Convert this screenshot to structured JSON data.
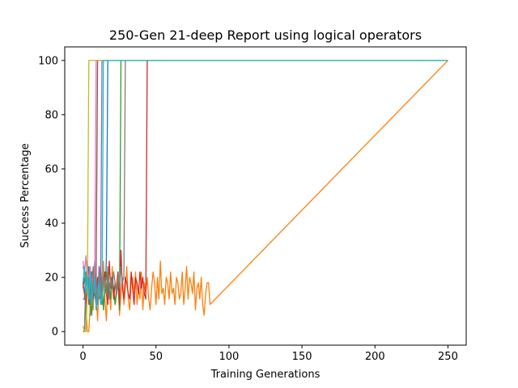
{
  "chart_data": {
    "type": "line",
    "title": "250-Gen 21-deep Report using logical operators",
    "xlabel": "Training Generations",
    "ylabel": "Success Percentage",
    "xlim": [
      -12.5,
      262.5
    ],
    "ylim": [
      -5,
      105
    ],
    "xticks": [
      0,
      50,
      100,
      150,
      200,
      250
    ],
    "yticks": [
      0,
      20,
      40,
      60,
      80,
      100
    ],
    "grid": false,
    "legend": "none",
    "colors": [
      "#1f77b4",
      "#ff7f0e",
      "#2ca02c",
      "#d62728",
      "#9467bd",
      "#8c564b",
      "#e377c2",
      "#7f7f7f",
      "#bcbd22",
      "#17becf"
    ],
    "series": [
      {
        "color": "#1f77b4",
        "x": [
          0,
          1,
          2,
          3,
          4,
          5,
          6,
          7,
          8,
          9,
          10,
          11,
          12,
          13,
          14,
          15,
          16,
          17,
          18,
          19,
          250
        ],
        "y": [
          12,
          12,
          22,
          18,
          24,
          6,
          18,
          14,
          26,
          8,
          20,
          12,
          18,
          10,
          22,
          14,
          26,
          100,
          100,
          100,
          100
        ]
      },
      {
        "color": "#ff7f0e",
        "x": [
          0,
          1,
          2,
          3,
          4,
          5,
          6,
          7,
          8,
          9,
          10,
          11,
          12,
          13,
          14,
          15,
          16,
          17,
          18,
          19,
          20,
          21,
          22,
          23,
          24,
          25,
          26,
          27,
          28,
          29,
          30,
          31,
          32,
          33,
          34,
          35,
          36,
          37,
          38,
          39,
          40,
          41,
          42,
          43,
          44,
          45,
          46,
          47,
          48,
          49,
          50,
          51,
          52,
          53,
          54,
          55,
          56,
          57,
          58,
          59,
          60,
          61,
          62,
          63,
          64,
          65,
          66,
          67,
          68,
          69,
          70,
          71,
          72,
          73,
          74,
          75,
          76,
          77,
          78,
          79,
          80,
          81,
          82,
          83,
          84,
          85,
          86,
          87,
          250
        ],
        "y": [
          0,
          0,
          10,
          0,
          0,
          10,
          20,
          8,
          24,
          14,
          4,
          18,
          22,
          10,
          26,
          12,
          4,
          20,
          16,
          8,
          24,
          14,
          10,
          18,
          22,
          6,
          14,
          20,
          10,
          16,
          24,
          12,
          8,
          18,
          20,
          14,
          22,
          10,
          16,
          12,
          22,
          8,
          18,
          14,
          20,
          12,
          8,
          16,
          22,
          18,
          10,
          20,
          12,
          26,
          14,
          16,
          10,
          20,
          18,
          12,
          22,
          14,
          16,
          10,
          20,
          18,
          12,
          14,
          22,
          10,
          16,
          24,
          12,
          20,
          18,
          14,
          22,
          8,
          16,
          18,
          12,
          20,
          10,
          6,
          14,
          18,
          18,
          10,
          100
        ]
      },
      {
        "color": "#2ca02c",
        "x": [
          0,
          1,
          2,
          3,
          4,
          5,
          6,
          7,
          8,
          9,
          10,
          11,
          12,
          13,
          14,
          15,
          16,
          17,
          18,
          19,
          20,
          21,
          22,
          23,
          24,
          25,
          26,
          27,
          250
        ],
        "y": [
          0,
          0,
          14,
          20,
          16,
          12,
          6,
          18,
          22,
          10,
          14,
          18,
          12,
          20,
          8,
          16,
          22,
          14,
          18,
          12,
          20,
          16,
          10,
          14,
          18,
          8,
          100,
          100,
          100
        ]
      },
      {
        "color": "#d62728",
        "x": [
          0,
          1,
          2,
          3,
          4,
          5,
          6,
          7,
          8,
          9,
          10,
          11,
          12,
          13,
          14,
          15,
          16,
          17,
          18,
          19,
          20,
          21,
          22,
          23,
          24,
          25,
          26,
          27,
          28,
          29,
          30,
          31,
          32,
          33,
          34,
          35,
          36,
          37,
          38,
          39,
          40,
          41,
          42,
          43,
          44,
          45,
          250
        ],
        "y": [
          18,
          14,
          10,
          20,
          16,
          12,
          22,
          18,
          14,
          10,
          20,
          16,
          24,
          12,
          18,
          22,
          14,
          10,
          26,
          16,
          20,
          12,
          18,
          14,
          22,
          10,
          30,
          16,
          12,
          20,
          18,
          14,
          12,
          22,
          16,
          10,
          20,
          18,
          14,
          22,
          16,
          20,
          14,
          12,
          100,
          100,
          100
        ]
      },
      {
        "color": "#9467bd",
        "x": [
          0,
          1,
          2,
          3,
          4,
          5,
          6,
          7,
          8,
          9,
          10,
          11,
          12,
          13,
          14,
          15,
          16,
          250
        ],
        "y": [
          24,
          22,
          18,
          26,
          14,
          20,
          12,
          22,
          16,
          18,
          10,
          24,
          14,
          100,
          100,
          100,
          100,
          100
        ]
      },
      {
        "color": "#8c564b",
        "x": [
          0,
          1,
          2,
          3,
          4,
          5,
          6,
          7,
          8,
          9,
          10,
          11,
          12,
          250
        ],
        "y": [
          16,
          20,
          14,
          24,
          10,
          18,
          22,
          12,
          16,
          20,
          100,
          100,
          100,
          100
        ]
      },
      {
        "color": "#e377c2",
        "x": [
          0,
          1,
          2,
          3,
          4,
          5,
          6,
          7,
          8,
          9,
          10,
          11,
          250
        ],
        "y": [
          26,
          22,
          28,
          18,
          20,
          24,
          16,
          22,
          18,
          100,
          100,
          100,
          100
        ]
      },
      {
        "color": "#7f7f7f",
        "x": [
          0,
          1,
          2,
          3,
          4,
          5,
          6,
          7,
          8,
          9,
          10,
          11,
          12,
          13,
          14,
          15,
          16,
          17,
          18,
          19,
          20,
          21,
          22,
          23,
          24,
          25,
          26,
          27,
          28,
          29,
          250
        ],
        "y": [
          0,
          0,
          22,
          16,
          20,
          10,
          18,
          24,
          14,
          20,
          12,
          22,
          16,
          10,
          18,
          20,
          14,
          24,
          12,
          20,
          16,
          22,
          18,
          14,
          20,
          16,
          24,
          18,
          20,
          100,
          100
        ]
      },
      {
        "color": "#bcbd22",
        "x": [
          0,
          1,
          2,
          3,
          4,
          5,
          6,
          7,
          250
        ],
        "y": [
          2,
          0,
          0,
          14,
          100,
          100,
          100,
          100,
          100
        ]
      },
      {
        "color": "#17becf",
        "x": [
          0,
          1,
          2,
          3,
          4,
          5,
          6,
          7,
          8,
          9,
          10,
          11,
          12,
          13,
          14,
          15,
          16,
          17,
          250
        ],
        "y": [
          18,
          24,
          14,
          20,
          12,
          22,
          10,
          16,
          20,
          8,
          14,
          18,
          10,
          12,
          100,
          100,
          100,
          100,
          100
        ]
      }
    ]
  }
}
